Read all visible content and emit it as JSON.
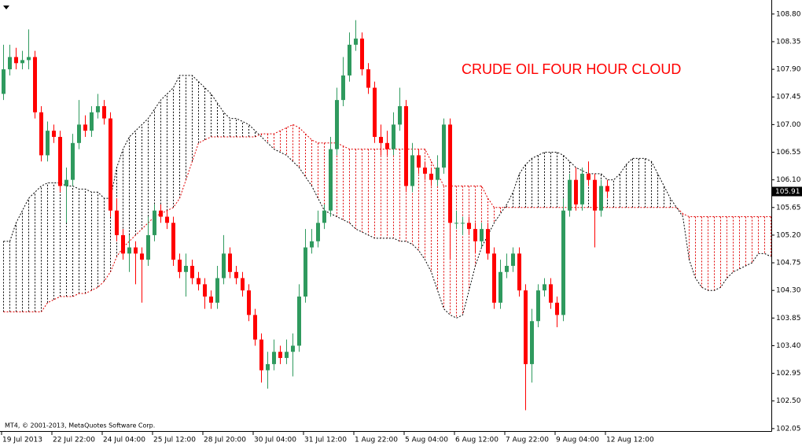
{
  "chart_data": {
    "type": "candlestick",
    "annotation": "CRUDE OIL FOUR HOUR CLOUD",
    "footer": "MT4, © 2001-2013, MetaQuotes Software Corp.",
    "categories": [
      "19 Jul 2013",
      null,
      null,
      null,
      null,
      null,
      null,
      null,
      "22 Jul 22:00",
      null,
      null,
      null,
      null,
      null,
      null,
      null,
      "24 Jul 04:00",
      null,
      null,
      null,
      null,
      null,
      null,
      null,
      "25 Jul 12:00",
      null,
      null,
      null,
      null,
      null,
      null,
      null,
      "28 Jul 20:00",
      null,
      null,
      null,
      null,
      null,
      null,
      null,
      "30 Jul 04:00",
      null,
      null,
      null,
      null,
      null,
      null,
      null,
      "31 Jul 12:00",
      null,
      null,
      null,
      null,
      null,
      null,
      null,
      "1 Aug 22:00",
      null,
      null,
      null,
      null,
      null,
      null,
      null,
      "5 Aug 04:00",
      null,
      null,
      null,
      null,
      null,
      null,
      null,
      "6 Aug 12:00",
      null,
      null,
      null,
      null,
      null,
      null,
      null,
      "7 Aug 22:00",
      null,
      null,
      null,
      null,
      null,
      null,
      null,
      "9 Aug 04:00",
      null,
      null,
      null,
      null,
      null,
      null,
      null,
      "12 Aug 12:00"
    ],
    "open": [
      107.5,
      107.9,
      108.1,
      108.0,
      108.05,
      108.1,
      107.2,
      106.5,
      106.9,
      106.8,
      106.0,
      106.1,
      106.7,
      107.0,
      106.9,
      107.2,
      107.3,
      107.1,
      105.6,
      105.2,
      104.9,
      105.0,
      104.9,
      104.8,
      105.2,
      105.6,
      105.5,
      105.4,
      104.8,
      104.6,
      104.7,
      104.5,
      104.4,
      104.2,
      104.1,
      104.5,
      104.9,
      104.6,
      104.5,
      104.3,
      103.9,
      103.5,
      103.0,
      103.1,
      103.3,
      103.2,
      103.3,
      103.4,
      104.2,
      105.0,
      105.1,
      105.4,
      105.6,
      106.6,
      107.4,
      107.8,
      108.3,
      108.4,
      107.9,
      107.6,
      106.8,
      106.7,
      106.6,
      107.0,
      107.3,
      106.0,
      106.5,
      106.3,
      106.2,
      106.1,
      106.3,
      107.0,
      105.4,
      105.4,
      105.4,
      105.3,
      105.1,
      105.3,
      104.9,
      104.1,
      104.6,
      104.7,
      104.9,
      104.3,
      103.1,
      103.8,
      104.3,
      104.4,
      104.1,
      103.9,
      105.6,
      106.1,
      105.7,
      106.2,
      106.1,
      105.6,
      106.0
    ],
    "high": [
      108.3,
      108.3,
      108.25,
      108.2,
      108.55,
      108.2,
      107.3,
      107.05,
      107.0,
      106.9,
      106.3,
      106.85,
      107.4,
      107.15,
      107.3,
      107.5,
      107.4,
      107.2,
      105.8,
      105.3,
      105.2,
      105.1,
      105.0,
      105.5,
      105.7,
      105.7,
      105.6,
      105.5,
      104.9,
      104.9,
      104.8,
      104.6,
      104.5,
      104.3,
      104.7,
      105.2,
      105.0,
      104.7,
      104.6,
      104.4,
      104.0,
      103.6,
      103.3,
      103.5,
      103.4,
      103.5,
      103.6,
      104.4,
      105.3,
      105.3,
      105.6,
      105.7,
      106.8,
      107.6,
      108.1,
      108.5,
      108.7,
      108.5,
      108.0,
      107.7,
      107.0,
      106.9,
      107.2,
      107.6,
      107.4,
      106.7,
      106.6,
      106.4,
      106.3,
      106.5,
      107.1,
      107.1,
      105.6,
      105.5,
      105.5,
      105.4,
      105.4,
      105.4,
      105.0,
      104.8,
      104.9,
      105.0,
      105.0,
      104.4,
      104.0,
      104.4,
      104.5,
      104.5,
      104.2,
      105.8,
      106.2,
      106.3,
      106.3,
      106.4,
      106.2,
      106.1,
      106.1
    ],
    "low": [
      107.4,
      107.8,
      107.9,
      107.9,
      107.9,
      107.1,
      106.4,
      106.4,
      106.7,
      105.9,
      105.4,
      106.0,
      106.6,
      106.8,
      106.8,
      107.1,
      107.0,
      105.5,
      105.1,
      104.8,
      104.6,
      104.4,
      104.1,
      104.7,
      105.1,
      105.4,
      105.3,
      104.7,
      104.5,
      104.2,
      104.4,
      104.3,
      104.0,
      104.0,
      104.0,
      104.4,
      104.5,
      104.4,
      104.2,
      103.8,
      103.4,
      102.8,
      102.7,
      103.0,
      103.1,
      103.1,
      102.9,
      103.3,
      104.1,
      104.9,
      105.0,
      105.3,
      105.5,
      106.5,
      107.3,
      107.7,
      108.2,
      107.8,
      107.5,
      106.7,
      106.5,
      106.5,
      106.5,
      106.9,
      105.9,
      105.9,
      106.2,
      106.1,
      106.0,
      106.0,
      106.2,
      104.8,
      105.3,
      105.2,
      105.2,
      104.9,
      105.0,
      104.8,
      104.0,
      104.0,
      104.5,
      104.6,
      104.2,
      102.35,
      102.8,
      103.7,
      104.2,
      104.0,
      103.7,
      103.8,
      105.5,
      105.6,
      105.6,
      106.0,
      105.0,
      105.5,
      105.8
    ],
    "close": [
      107.9,
      108.1,
      108.0,
      108.05,
      108.1,
      107.2,
      106.5,
      106.9,
      106.8,
      106.0,
      106.1,
      106.7,
      107.0,
      106.9,
      107.2,
      107.3,
      107.1,
      105.6,
      105.2,
      104.9,
      105.0,
      104.9,
      104.8,
      105.2,
      105.6,
      105.5,
      105.4,
      104.8,
      104.6,
      104.7,
      104.5,
      104.4,
      104.2,
      104.1,
      104.5,
      104.9,
      104.6,
      104.5,
      104.3,
      103.9,
      103.5,
      103.0,
      103.1,
      103.3,
      103.2,
      103.3,
      103.4,
      104.2,
      105.0,
      105.1,
      105.4,
      105.6,
      106.6,
      107.4,
      107.8,
      108.3,
      108.4,
      107.9,
      107.6,
      106.8,
      106.7,
      106.6,
      107.0,
      107.3,
      106.0,
      106.5,
      106.3,
      106.2,
      106.1,
      106.3,
      107.0,
      105.4,
      105.4,
      105.4,
      105.3,
      105.1,
      105.3,
      104.9,
      104.1,
      104.6,
      104.7,
      104.9,
      104.3,
      103.1,
      103.8,
      104.3,
      104.4,
      104.1,
      103.9,
      105.6,
      106.1,
      105.7,
      106.2,
      106.1,
      105.6,
      106.0,
      105.91
    ],
    "up_color": "#2f9a5e",
    "down_color": "#ff0000",
    "cloud": {
      "span_a_color": "#e00000",
      "span_b_color": "#000000",
      "span_a": [
        103.95,
        103.95,
        103.95,
        103.95,
        103.95,
        103.95,
        103.95,
        104.1,
        104.15,
        104.2,
        104.2,
        104.2,
        104.25,
        104.25,
        104.3,
        104.35,
        104.45,
        104.6,
        104.85,
        105.0,
        105.1,
        105.2,
        105.3,
        105.4,
        105.5,
        105.55,
        105.6,
        105.65,
        105.8,
        106.1,
        106.4,
        106.7,
        106.75,
        106.8,
        106.8,
        106.8,
        106.8,
        106.8,
        106.8,
        106.8,
        106.8,
        106.85,
        106.85,
        106.85,
        106.9,
        106.95,
        107.0,
        106.95,
        106.85,
        106.75,
        106.7,
        106.7,
        106.7,
        106.7,
        106.65,
        106.6,
        106.6,
        106.6,
        106.6,
        106.6,
        106.6,
        106.6,
        106.6,
        106.6,
        106.6,
        106.6,
        106.6,
        106.6,
        106.4,
        106.2,
        106.0,
        106.0,
        106.0,
        106.0,
        106.0,
        106.0,
        106.0,
        105.8,
        105.65,
        105.65,
        105.65,
        105.65,
        105.65,
        105.65,
        105.65,
        105.65,
        105.65,
        105.65,
        105.65,
        105.65,
        105.65,
        105.65,
        105.65,
        105.65,
        105.65,
        105.65,
        105.65,
        105.65,
        105.65,
        105.65,
        105.65,
        105.65,
        105.65,
        105.65,
        105.65,
        105.65,
        105.65,
        105.65,
        105.55,
        105.5,
        105.5,
        105.5,
        105.5,
        105.5,
        105.5,
        105.5,
        105.5,
        105.5,
        105.5,
        105.5,
        105.5,
        105.5,
        105.5
      ],
      "span_b": [
        105.1,
        105.1,
        105.4,
        105.6,
        105.8,
        105.9,
        106.0,
        106.05,
        106.05,
        106.05,
        106.0,
        106.0,
        105.95,
        105.95,
        105.9,
        105.9,
        105.8,
        105.8,
        106.3,
        106.6,
        106.8,
        106.9,
        107.0,
        107.1,
        107.25,
        107.4,
        107.5,
        107.6,
        107.8,
        107.8,
        107.8,
        107.7,
        107.6,
        107.5,
        107.35,
        107.2,
        107.1,
        107.1,
        107.05,
        107.0,
        106.9,
        106.8,
        106.7,
        106.6,
        106.55,
        106.5,
        106.4,
        106.3,
        106.15,
        106.0,
        105.8,
        105.6,
        105.55,
        105.5,
        105.45,
        105.4,
        105.3,
        105.25,
        105.2,
        105.15,
        105.15,
        105.15,
        105.15,
        105.1,
        105.1,
        105.05,
        104.95,
        104.8,
        104.6,
        104.3,
        104.0,
        103.9,
        103.85,
        103.9,
        104.3,
        104.7,
        105.0,
        105.2,
        105.4,
        105.55,
        105.7,
        105.9,
        106.2,
        106.35,
        106.45,
        106.5,
        106.55,
        106.55,
        106.55,
        106.5,
        106.4,
        106.3,
        106.25,
        106.2,
        106.2,
        106.2,
        106.1,
        106.1,
        106.2,
        106.35,
        106.45,
        106.45,
        106.45,
        106.4,
        106.2,
        106.0,
        105.8,
        105.65,
        105.5,
        104.8,
        104.5,
        104.35,
        104.3,
        104.3,
        104.35,
        104.5,
        104.6,
        104.65,
        104.7,
        104.75,
        104.9,
        104.9,
        104.85
      ]
    },
    "ylim": [
      102.01,
      108.99
    ],
    "yticks": [
      {
        "value": 108.8,
        "label": "108.80"
      },
      108.35,
      {
        "value": 107.9,
        "label": "107.90"
      },
      107.45,
      {
        "value": 107.0,
        "label": "107.00"
      },
      106.55,
      {
        "value": 106.1,
        "label": "106.10"
      },
      105.65,
      {
        "value": 105.2,
        "label": "105.20"
      },
      104.75,
      {
        "value": 104.3,
        "label": "104.30"
      },
      103.85,
      {
        "value": 103.4,
        "label": "103.40"
      },
      102.95,
      {
        "value": 102.5,
        "label": "102.50"
      },
      102.05
    ]
  }
}
